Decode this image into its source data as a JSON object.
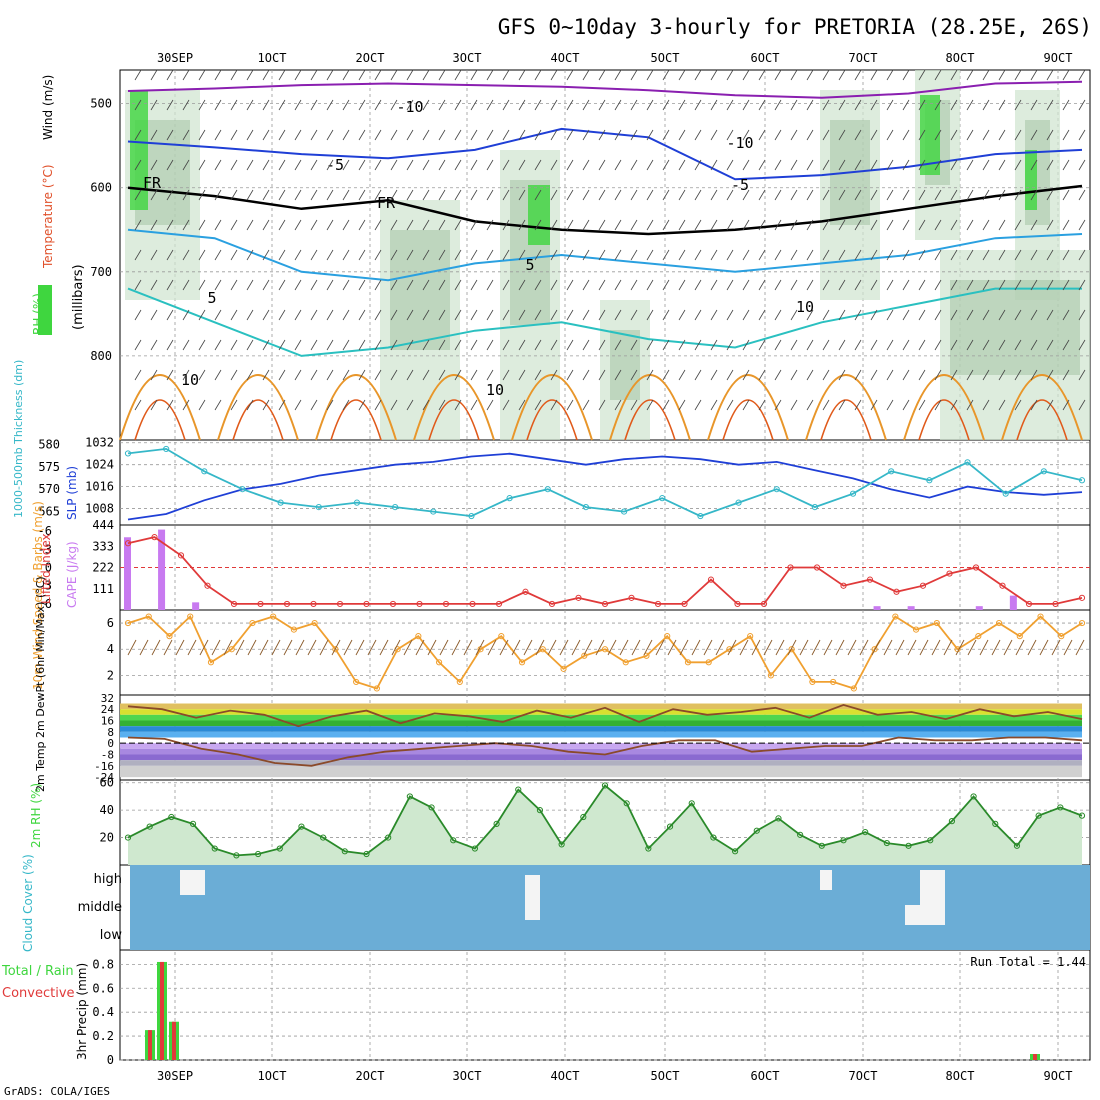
{
  "header": {
    "title": "GFS 0~10day 3-hourly for PRETORIA (28.25E, 26S)",
    "credit": "GrADS: COLA/IGES"
  },
  "colors": {
    "grid": "#9a9a9a",
    "rh_green": "#3fd63f",
    "temp_blue": "#1f3fd6",
    "temp_purple": "#8a1fb0",
    "slp": "#1f3fd6",
    "thickness": "#35b7c8",
    "lifted_index": "#e03a3a",
    "cape": "#c87af0",
    "wind10m": "#f0a030",
    "cloud_bg": "#6badd6",
    "precip_total": "#3fd63f",
    "precip_conv": "#e03a3a"
  },
  "chart_data": [
    {
      "id": "upper",
      "type": "contour",
      "ylabel_parts": [
        "RH (%)",
        "Temperature (°C)",
        "Wind (m/s)"
      ],
      "ylabel_right": "(millibars)",
      "x_ticks": [
        "30SEP",
        "1OCT",
        "2OCT",
        "3OCT",
        "4OCT",
        "5OCT",
        "6OCT",
        "7OCT",
        "8OCT",
        "9OCT"
      ],
      "yticks": [
        500,
        600,
        700,
        800
      ],
      "ylim": [
        900,
        460
      ],
      "contour_labels": [
        "-10",
        "-10",
        "-5",
        "-5",
        "FR",
        "FR",
        "5",
        "5",
        "10",
        "10",
        "10"
      ],
      "isotherms": [
        {
          "level": "-10",
          "color": "#8a1fb0",
          "p": [
            485,
            482,
            478,
            476,
            478,
            480,
            484,
            490,
            493,
            488,
            476,
            474
          ]
        },
        {
          "level": "-5",
          "color": "#1f3fd6",
          "p": [
            545,
            552,
            560,
            565,
            555,
            530,
            540,
            590,
            585,
            575,
            560,
            555
          ]
        },
        {
          "level": "0",
          "color": "#000000",
          "p": [
            600,
            610,
            625,
            615,
            640,
            650,
            655,
            650,
            640,
            625,
            610,
            598
          ]
        },
        {
          "level": "5",
          "color": "#2aa0e0",
          "p": [
            650,
            660,
            700,
            710,
            690,
            680,
            690,
            700,
            690,
            680,
            660,
            655
          ]
        },
        {
          "level": "10",
          "color": "#2ac0c0",
          "p": [
            720,
            760,
            800,
            790,
            770,
            760,
            780,
            790,
            760,
            740,
            720,
            720
          ]
        }
      ]
    },
    {
      "id": "slp",
      "type": "line",
      "ylabel_left": "1000-500mb Thickness (dm)",
      "ylabel_right": "SLP (mb)",
      "yticks_left": [
        565,
        570,
        575,
        580
      ],
      "yticks_right": [
        1008,
        1016,
        1024,
        1032
      ],
      "series": [
        {
          "name": "SLP",
          "values": [
            1004,
            1006,
            1011,
            1015,
            1017,
            1020,
            1022,
            1024,
            1025,
            1027,
            1028,
            1026,
            1024,
            1026,
            1027,
            1026,
            1024,
            1025,
            1022,
            1019,
            1015,
            1012,
            1016,
            1014,
            1013,
            1014
          ]
        },
        {
          "name": "Thickness",
          "values": [
            578,
            579,
            574,
            570,
            567,
            566,
            567,
            566,
            565,
            564,
            568,
            570,
            566,
            565,
            568,
            564,
            567,
            570,
            566,
            569,
            574,
            572,
            576,
            569,
            574,
            572
          ]
        }
      ]
    },
    {
      "id": "li-cape",
      "type": "bar",
      "ylabel_left": "Lifted Index",
      "ylabel_right": "CAPE (J/kg)",
      "yticks_left": [
        -6,
        -3,
        0,
        3,
        6
      ],
      "yticks_right": [
        111,
        222,
        333,
        444
      ],
      "cape": [
        380,
        420,
        40,
        0,
        0,
        0,
        0,
        0,
        0,
        0,
        0,
        0,
        0,
        0,
        0,
        0,
        0,
        0,
        0,
        0,
        0,
        0,
        20,
        20,
        0,
        20,
        75,
        0,
        0
      ],
      "li": [
        -4,
        -5,
        -2,
        3,
        6,
        6,
        6,
        6,
        6,
        6,
        6,
        6,
        6,
        6,
        6,
        4,
        6,
        5,
        6,
        5,
        6,
        6,
        2,
        6,
        6,
        0,
        0,
        3,
        2,
        4,
        3,
        1,
        0,
        3,
        6,
        6,
        5
      ]
    },
    {
      "id": "wind10m",
      "type": "line",
      "ylabel": "10m Wind Speed & Barbs (m/s)",
      "yticks": [
        2,
        4,
        6
      ],
      "values": [
        6,
        6.5,
        5,
        6.5,
        3,
        4,
        6,
        6.5,
        5.5,
        6,
        4,
        1.5,
        1,
        4,
        5,
        3,
        1.5,
        4,
        5,
        3,
        4,
        2.5,
        3.5,
        4,
        3,
        3.5,
        5,
        3,
        3,
        4,
        5,
        2,
        4,
        1.5,
        1.5,
        1,
        4,
        6.5,
        5.5,
        6,
        4,
        5,
        6,
        5,
        6.5,
        5,
        6
      ]
    },
    {
      "id": "temp2m",
      "type": "area",
      "ylabel": "2m Temp 2m DewPt (6hr Min/Max) (°C)",
      "yticks": [
        32,
        24,
        16,
        8,
        0,
        -8,
        -16,
        -24
      ],
      "temp": [
        26,
        24,
        18,
        23,
        20,
        12,
        19,
        23,
        14,
        21,
        19,
        15,
        23,
        18,
        25,
        15,
        24,
        20,
        22,
        25,
        18,
        27,
        20,
        22,
        17,
        24,
        19,
        22,
        17
      ],
      "dewpt": [
        4,
        3,
        -4,
        -8,
        -14,
        -16,
        -10,
        -6,
        -4,
        -2,
        0,
        -2,
        -6,
        -8,
        -2,
        2,
        2,
        -6,
        -4,
        -2,
        -2,
        4,
        2,
        2,
        4,
        4,
        2
      ]
    },
    {
      "id": "rh2m",
      "type": "area",
      "ylabel": "2m RH (%)",
      "yticks": [
        20,
        40,
        60
      ],
      "values": [
        20,
        28,
        35,
        30,
        12,
        7,
        8,
        12,
        28,
        20,
        10,
        8,
        20,
        50,
        42,
        18,
        12,
        30,
        55,
        40,
        15,
        35,
        58,
        45,
        12,
        28,
        45,
        20,
        10,
        25,
        34,
        22,
        14,
        18,
        24,
        16,
        14,
        18,
        32,
        50,
        30,
        14,
        36,
        42,
        36
      ]
    },
    {
      "id": "cloud",
      "type": "heatmap",
      "ylabel": "Cloud Cover (%)",
      "yticks": [
        "high",
        "middle",
        "low"
      ]
    },
    {
      "id": "precip",
      "type": "bar",
      "ylabel": "3hr Precip (mm)",
      "legend": [
        "Total / Rain",
        "Convective"
      ],
      "note": "Run Total = 1.44",
      "yticks": [
        0,
        0.2,
        0.4,
        0.6,
        0.8
      ],
      "x_ticks": [
        "30SEP",
        "1OCT",
        "2OCT",
        "3OCT",
        "4OCT",
        "5OCT",
        "6OCT",
        "7OCT",
        "8OCT",
        "9OCT"
      ],
      "values": [
        0.25,
        0.82,
        0.32,
        0.05
      ]
    }
  ]
}
